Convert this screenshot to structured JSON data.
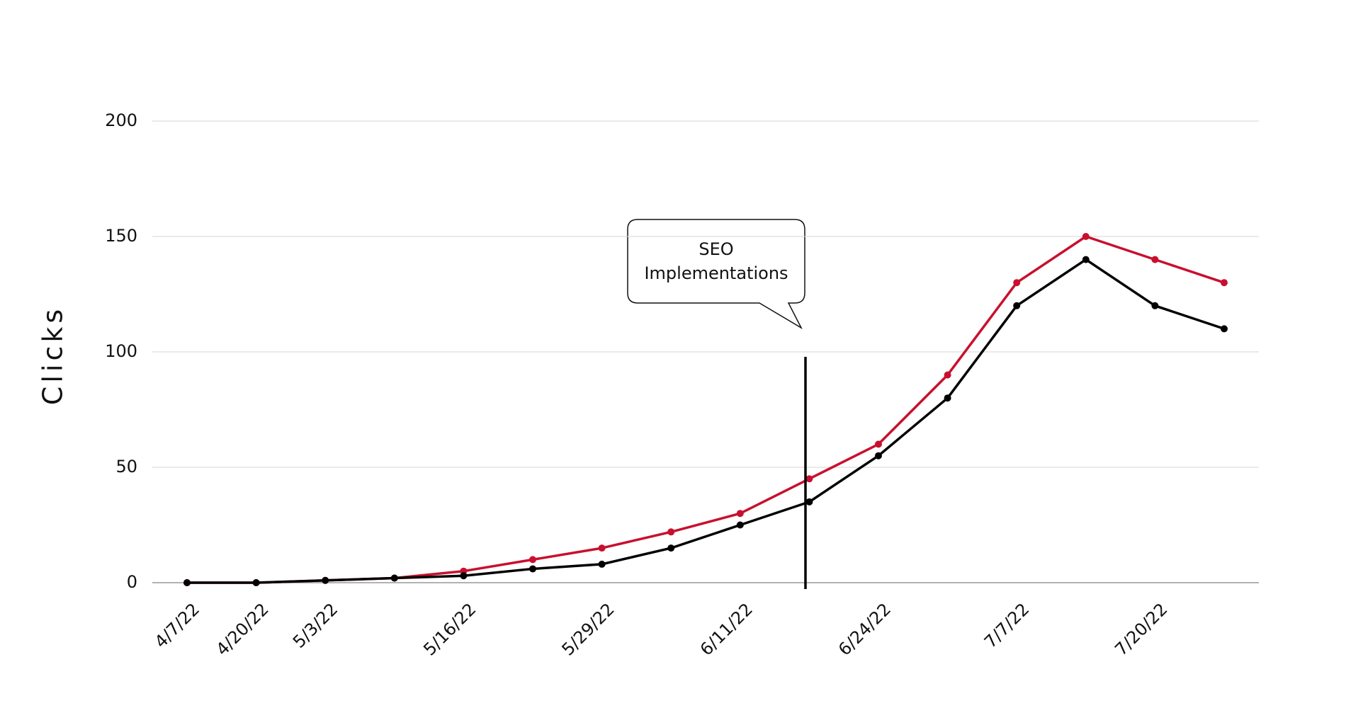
{
  "chart_data": {
    "type": "line",
    "categories": [
      "4/7/22",
      "4/20/22",
      "5/3/22",
      null,
      "5/16/22",
      null,
      "5/29/22",
      null,
      "6/11/22",
      null,
      "6/24/22",
      null,
      "7/7/22",
      null,
      "7/20/22",
      null
    ],
    "series": [
      {
        "color": "#c8102e",
        "values": [
          0,
          0,
          1,
          2,
          5,
          10,
          15,
          22,
          30,
          45,
          60,
          90,
          130,
          150,
          140,
          130
        ]
      },
      {
        "color": "#000000",
        "values": [
          0,
          0,
          1,
          2,
          3,
          6,
          8,
          15,
          25,
          35,
          55,
          80,
          120,
          140,
          120,
          110
        ]
      }
    ],
    "ylabel": "Clicks",
    "annotation": "SEO Implementations",
    "ylim": [
      0,
      200
    ],
    "yticks": [
      0,
      50,
      100,
      150,
      200
    ],
    "grid": true
  }
}
